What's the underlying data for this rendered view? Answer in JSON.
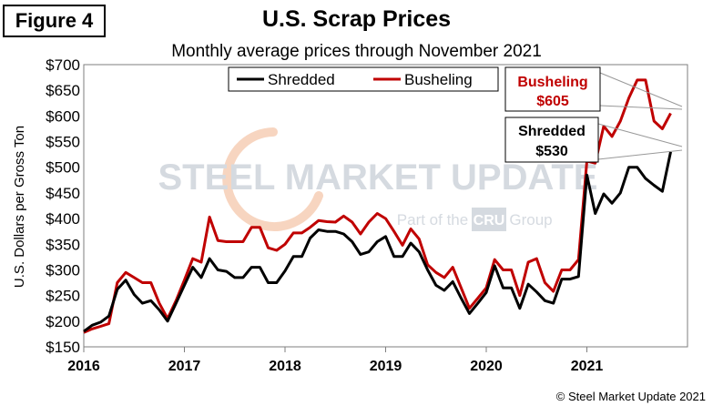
{
  "figure_label": "Figure 4",
  "copyright": "© Steel Market Update 2021",
  "watermark": {
    "line1": "STEEL MARKET UPDATE",
    "line2a": "Part of the",
    "line2b": "CRU",
    "line2c": "Group"
  },
  "colors": {
    "shredded": "#000000",
    "busheling": "#c00000",
    "watermark": "#c5ccd6",
    "accent": "#f4c7a8"
  },
  "chart_data": {
    "type": "line",
    "title": "U.S. Scrap Prices",
    "subtitle": "Monthly average prices through November 2021",
    "ylabel": "U.S. Dollars per Gross Ton",
    "xlabel": "",
    "ylim": [
      150,
      700
    ],
    "yticks": [
      150,
      200,
      250,
      300,
      350,
      400,
      450,
      500,
      550,
      600,
      650,
      700
    ],
    "ytick_labels": [
      "$150",
      "$200",
      "$250",
      "$300",
      "$350",
      "$400",
      "$450",
      "$500",
      "$550",
      "$600",
      "$650",
      "$700"
    ],
    "xlim": [
      2016,
      2022
    ],
    "xticks": [
      2016,
      2017,
      2018,
      2019,
      2020,
      2021
    ],
    "xtick_labels": [
      "2016",
      "2017",
      "2018",
      "2019",
      "2020",
      "2021"
    ],
    "legend": {
      "position": "top-center",
      "entries": [
        "Shredded",
        "Busheling"
      ]
    },
    "annotations": [
      {
        "series": "Busheling",
        "line1": "Busheling",
        "line2": "$605"
      },
      {
        "series": "Shredded",
        "line1": "Shredded",
        "line2": "$530"
      }
    ],
    "x": [
      2016.0,
      2016.083,
      2016.167,
      2016.25,
      2016.333,
      2016.417,
      2016.5,
      2016.583,
      2016.667,
      2016.75,
      2016.833,
      2016.917,
      2017.0,
      2017.083,
      2017.167,
      2017.25,
      2017.333,
      2017.417,
      2017.5,
      2017.583,
      2017.667,
      2017.75,
      2017.833,
      2017.917,
      2018.0,
      2018.083,
      2018.167,
      2018.25,
      2018.333,
      2018.417,
      2018.5,
      2018.583,
      2018.667,
      2018.75,
      2018.833,
      2018.917,
      2019.0,
      2019.083,
      2019.167,
      2019.25,
      2019.333,
      2019.417,
      2019.5,
      2019.583,
      2019.667,
      2019.75,
      2019.833,
      2019.917,
      2020.0,
      2020.083,
      2020.167,
      2020.25,
      2020.333,
      2020.417,
      2020.5,
      2020.583,
      2020.667,
      2020.75,
      2020.833,
      2020.917,
      2021.0,
      2021.083,
      2021.167,
      2021.25,
      2021.333,
      2021.417,
      2021.5,
      2021.583,
      2021.667,
      2021.75,
      2021.833
    ],
    "series": [
      {
        "name": "Shredded",
        "values": [
          180,
          192,
          198,
          210,
          262,
          280,
          252,
          235,
          240,
          222,
          200,
          235,
          270,
          305,
          285,
          322,
          300,
          297,
          285,
          285,
          305,
          305,
          275,
          275,
          298,
          326,
          326,
          362,
          378,
          375,
          375,
          370,
          355,
          330,
          335,
          355,
          365,
          326,
          326,
          352,
          335,
          300,
          270,
          260,
          277,
          245,
          215,
          235,
          256,
          308,
          265,
          265,
          225,
          272,
          257,
          240,
          235,
          282,
          282,
          287,
          485,
          410,
          448,
          430,
          450,
          500,
          500,
          478,
          465,
          453,
          530
        ]
      },
      {
        "name": "Busheling",
        "values": [
          178,
          185,
          190,
          195,
          275,
          295,
          285,
          275,
          275,
          235,
          205,
          240,
          280,
          322,
          315,
          403,
          357,
          355,
          355,
          355,
          383,
          383,
          343,
          338,
          350,
          372,
          372,
          383,
          396,
          394,
          393,
          405,
          393,
          370,
          393,
          410,
          400,
          375,
          348,
          380,
          360,
          310,
          295,
          285,
          305,
          265,
          225,
          245,
          265,
          320,
          300,
          300,
          250,
          315,
          322,
          275,
          258,
          300,
          300,
          320,
          512,
          508,
          580,
          560,
          590,
          635,
          670,
          670,
          590,
          575,
          605
        ]
      }
    ]
  }
}
